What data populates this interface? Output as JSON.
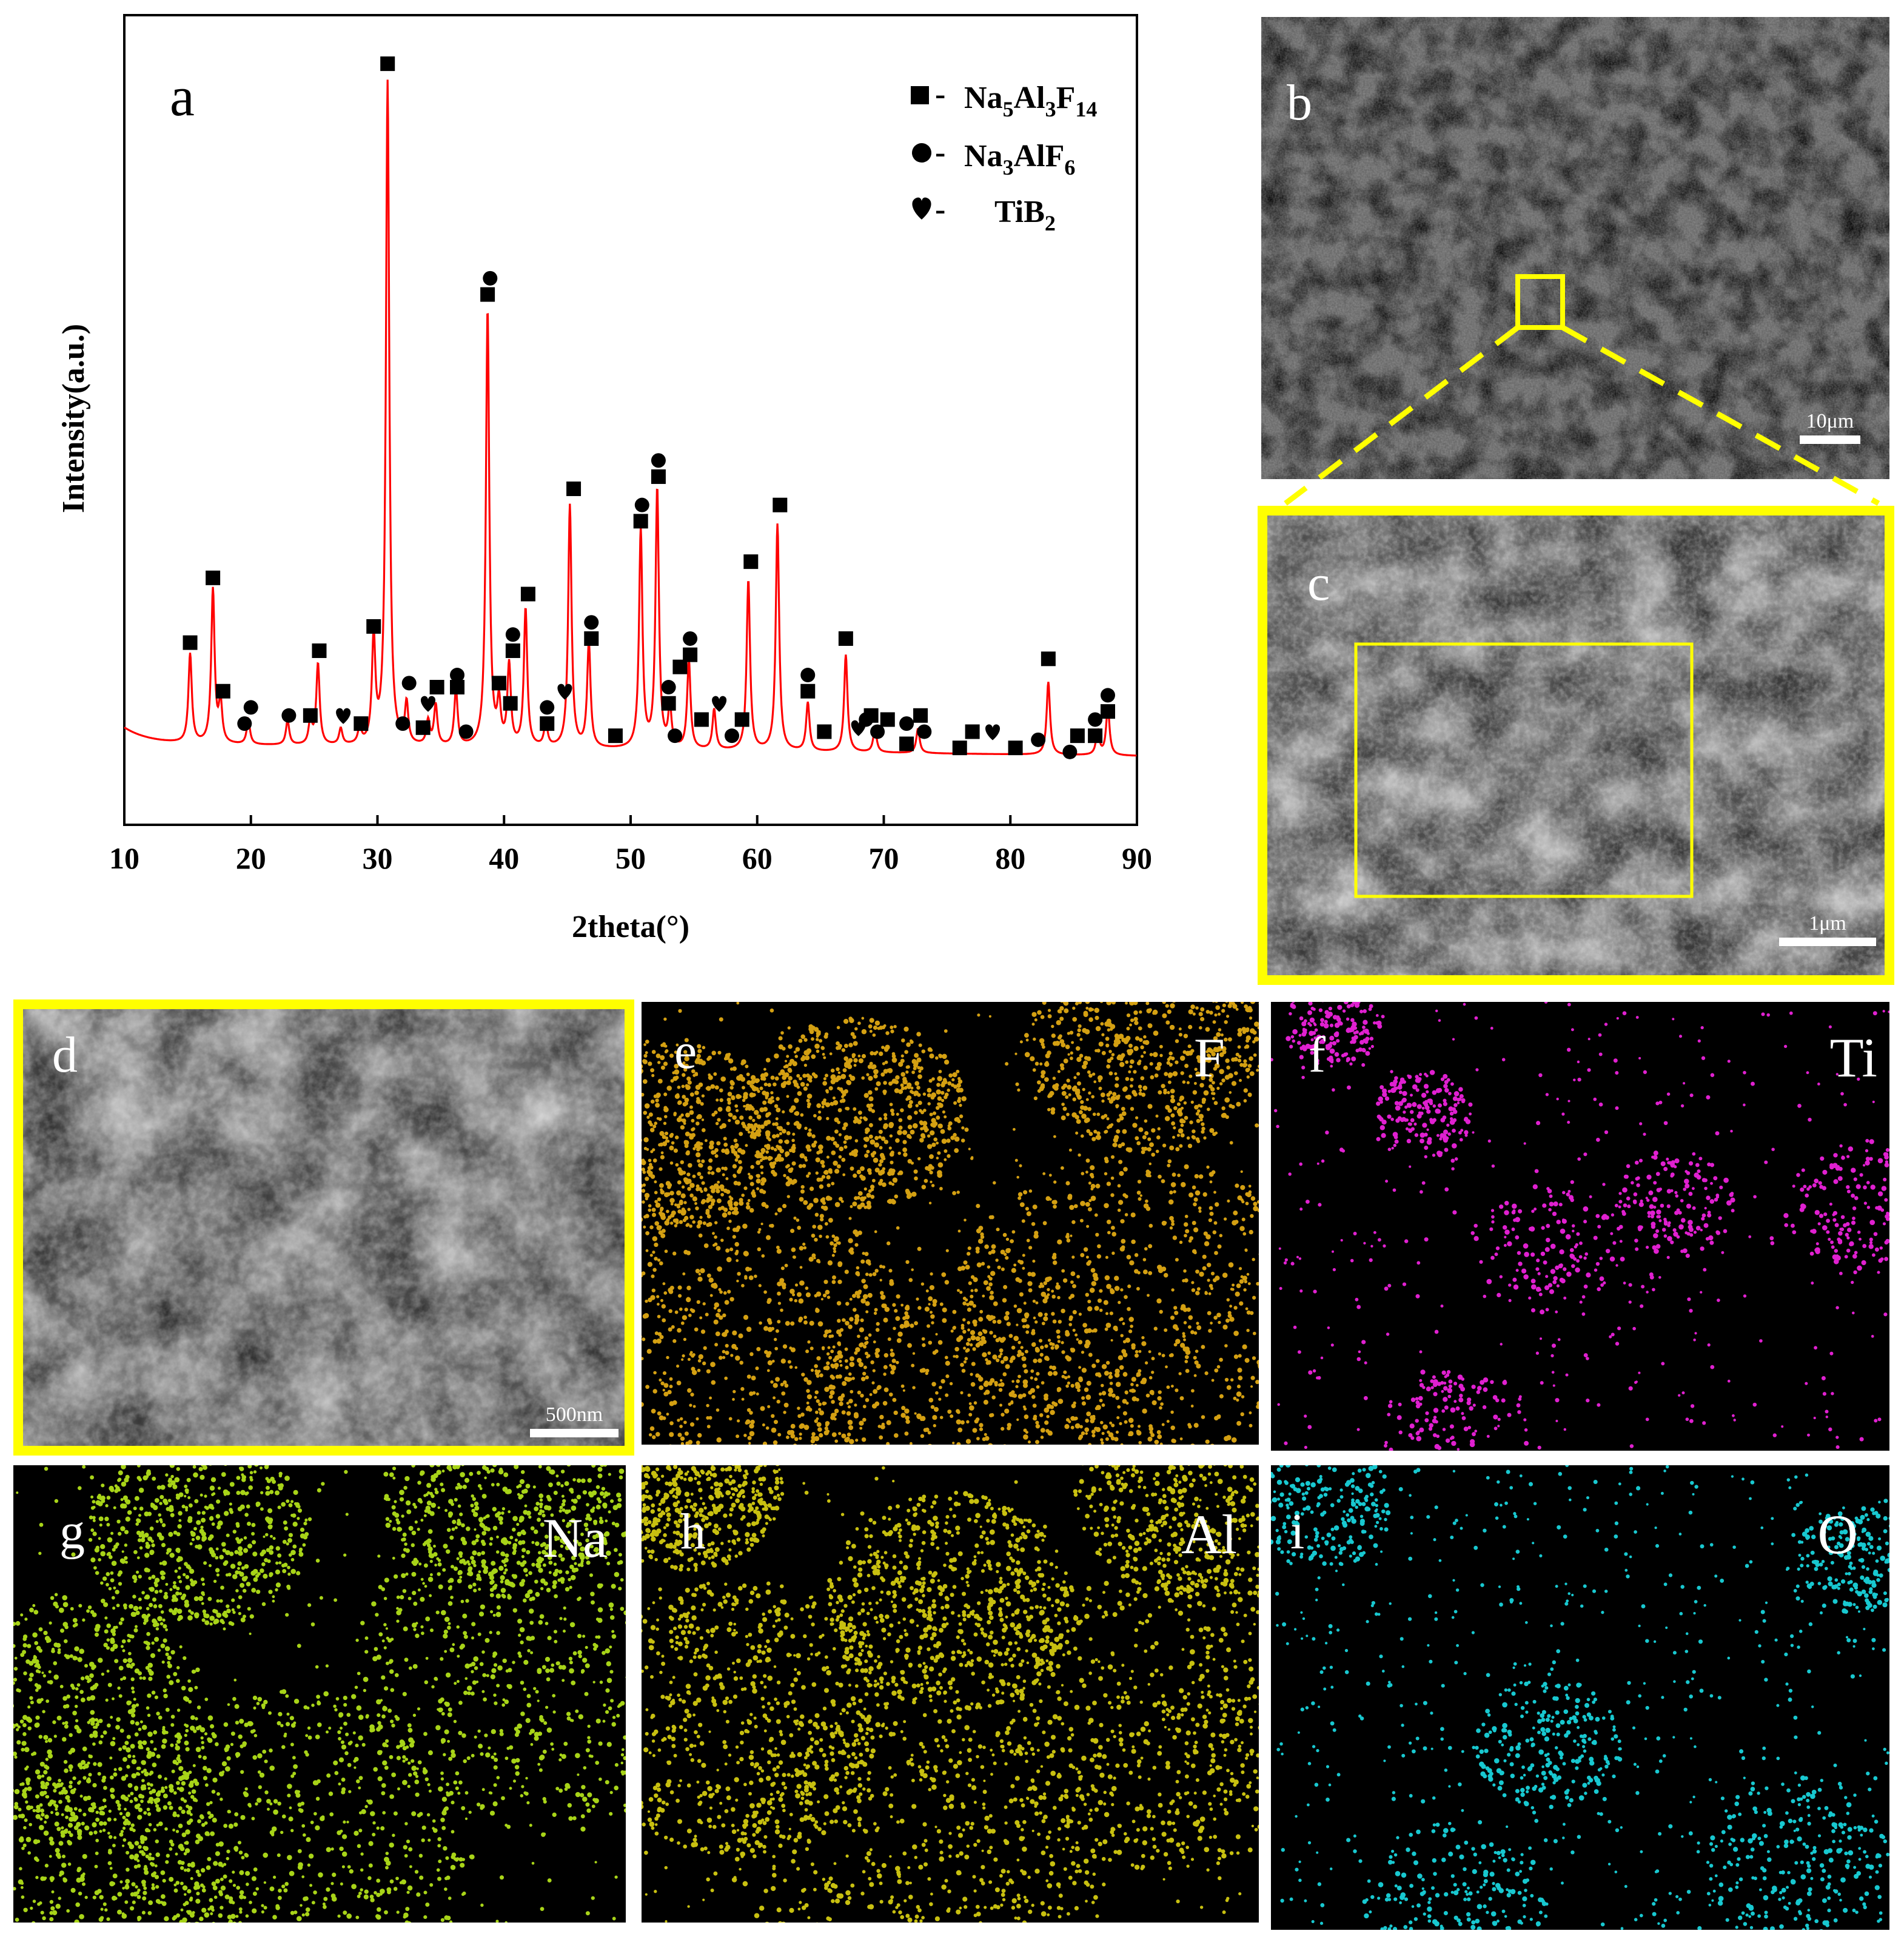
{
  "chart_data": {
    "type": "line",
    "title": "",
    "panel_label": "a",
    "xlabel": "2theta(°)",
    "ylabel": "Intensity(a.u.)",
    "xlim": [
      10,
      90
    ],
    "ylim": [
      0,
      100
    ],
    "xticks": [
      10,
      20,
      30,
      40,
      50,
      60,
      70,
      80,
      90
    ],
    "line_color": "#ff0000",
    "legend": [
      {
        "symbol": "square",
        "base": "Na",
        "label_html": "Na5Al3F14",
        "parts": [
          [
            "Na",
            ""
          ],
          [
            "5",
            "sub"
          ],
          [
            "Al",
            ""
          ],
          [
            "3",
            "sub"
          ],
          [
            "F",
            ""
          ],
          [
            "14",
            "sub"
          ]
        ],
        "prefix": "■-"
      },
      {
        "symbol": "circle",
        "label_html": "Na3AlF6",
        "parts": [
          [
            "Na",
            ""
          ],
          [
            "3",
            "sub"
          ],
          [
            "AlF",
            ""
          ],
          [
            "6",
            "sub"
          ]
        ],
        "prefix": "●-"
      },
      {
        "symbol": "heart",
        "label_html": "TiB2",
        "parts": [
          [
            "TiB",
            ""
          ],
          [
            "2",
            "sub"
          ]
        ],
        "prefix": "♥-"
      }
    ],
    "legend_position": "top-right",
    "background_level": 10,
    "peaks": [
      {
        "x": 15.2,
        "y": 21
      },
      {
        "x": 17.0,
        "y": 29
      },
      {
        "x": 17.6,
        "y": 15
      },
      {
        "x": 19.8,
        "y": 13
      },
      {
        "x": 22.9,
        "y": 13
      },
      {
        "x": 24.7,
        "y": 13
      },
      {
        "x": 25.3,
        "y": 20
      },
      {
        "x": 27.1,
        "y": 12
      },
      {
        "x": 28.6,
        "y": 12
      },
      {
        "x": 29.7,
        "y": 23
      },
      {
        "x": 30.8,
        "y": 92
      },
      {
        "x": 32.3,
        "y": 15
      },
      {
        "x": 34.0,
        "y": 13
      },
      {
        "x": 34.6,
        "y": 15
      },
      {
        "x": 36.2,
        "y": 17
      },
      {
        "x": 38.7,
        "y": 64
      },
      {
        "x": 39.6,
        "y": 15
      },
      {
        "x": 40.4,
        "y": 20
      },
      {
        "x": 41.7,
        "y": 27
      },
      {
        "x": 43.3,
        "y": 13
      },
      {
        "x": 45.2,
        "y": 40
      },
      {
        "x": 46.7,
        "y": 23
      },
      {
        "x": 50.8,
        "y": 37
      },
      {
        "x": 52.1,
        "y": 42
      },
      {
        "x": 53.1,
        "y": 15
      },
      {
        "x": 54.6,
        "y": 21
      },
      {
        "x": 56.6,
        "y": 15
      },
      {
        "x": 59.3,
        "y": 31
      },
      {
        "x": 61.6,
        "y": 38
      },
      {
        "x": 64.0,
        "y": 16
      },
      {
        "x": 67.0,
        "y": 22
      },
      {
        "x": 69.3,
        "y": 13
      },
      {
        "x": 72.7,
        "y": 13
      },
      {
        "x": 83.0,
        "y": 19
      },
      {
        "x": 86.9,
        "y": 13
      },
      {
        "x": 87.7,
        "y": 16
      }
    ],
    "phase_markers": [
      {
        "phase": "Na5Al3F14",
        "x": 15.2,
        "y": 22.5
      },
      {
        "phase": "Na5Al3F14",
        "x": 17.0,
        "y": 30.5
      },
      {
        "phase": "Na5Al3F14",
        "x": 17.8,
        "y": 16.5
      },
      {
        "phase": "Na3AlF6",
        "x": 19.5,
        "y": 12.5
      },
      {
        "phase": "Na3AlF6",
        "x": 20.0,
        "y": 14.5
      },
      {
        "phase": "Na3AlF6",
        "x": 23.0,
        "y": 13.5
      },
      {
        "phase": "Na5Al3F14",
        "x": 24.7,
        "y": 13.5
      },
      {
        "phase": "Na5Al3F14",
        "x": 25.4,
        "y": 21.5
      },
      {
        "phase": "TiB2",
        "x": 27.3,
        "y": 13.5
      },
      {
        "phase": "Na5Al3F14",
        "x": 28.7,
        "y": 12.5
      },
      {
        "phase": "Na5Al3F14",
        "x": 29.7,
        "y": 24.5
      },
      {
        "phase": "Na5Al3F14",
        "x": 30.8,
        "y": 94
      },
      {
        "phase": "Na3AlF6",
        "x": 32.0,
        "y": 12.5
      },
      {
        "phase": "Na3AlF6",
        "x": 32.5,
        "y": 17.5
      },
      {
        "phase": "Na5Al3F14",
        "x": 33.6,
        "y": 12
      },
      {
        "phase": "TiB2",
        "x": 34.0,
        "y": 15
      },
      {
        "phase": "Na5Al3F14",
        "x": 34.7,
        "y": 17
      },
      {
        "phase": "Na3AlF6",
        "x": 36.3,
        "y": 18.5
      },
      {
        "phase": "Na5Al3F14",
        "x": 36.3,
        "y": 17
      },
      {
        "phase": "Na3AlF6",
        "x": 37.0,
        "y": 11.5
      },
      {
        "phase": "Na3AlF6",
        "x": 38.9,
        "y": 67.5
      },
      {
        "phase": "Na5Al3F14",
        "x": 38.7,
        "y": 65.5
      },
      {
        "phase": "Na5Al3F14",
        "x": 39.6,
        "y": 17.5
      },
      {
        "phase": "Na3AlF6",
        "x": 40.7,
        "y": 23.5
      },
      {
        "phase": "Na5Al3F14",
        "x": 40.7,
        "y": 21.5
      },
      {
        "phase": "Na5Al3F14",
        "x": 40.5,
        "y": 15
      },
      {
        "phase": "Na5Al3F14",
        "x": 41.9,
        "y": 28.5
      },
      {
        "phase": "Na3AlF6",
        "x": 43.4,
        "y": 14.5
      },
      {
        "phase": "Na5Al3F14",
        "x": 43.4,
        "y": 12.5
      },
      {
        "phase": "TiB2",
        "x": 44.8,
        "y": 16.5
      },
      {
        "phase": "Na5Al3F14",
        "x": 45.5,
        "y": 41.5
      },
      {
        "phase": "Na3AlF6",
        "x": 46.9,
        "y": 25
      },
      {
        "phase": "Na5Al3F14",
        "x": 46.9,
        "y": 23
      },
      {
        "phase": "Na5Al3F14",
        "x": 48.8,
        "y": 11
      },
      {
        "phase": "Na3AlF6",
        "x": 50.9,
        "y": 39.5
      },
      {
        "phase": "Na5Al3F14",
        "x": 50.8,
        "y": 37.5
      },
      {
        "phase": "Na3AlF6",
        "x": 52.2,
        "y": 45
      },
      {
        "phase": "Na5Al3F14",
        "x": 52.2,
        "y": 43
      },
      {
        "phase": "Na3AlF6",
        "x": 53.0,
        "y": 17
      },
      {
        "phase": "Na5Al3F14",
        "x": 53.0,
        "y": 15
      },
      {
        "phase": "Na3AlF6",
        "x": 53.5,
        "y": 11
      },
      {
        "phase": "Na5Al3F14",
        "x": 53.9,
        "y": 19.5
      },
      {
        "phase": "Na3AlF6",
        "x": 54.7,
        "y": 23
      },
      {
        "phase": "Na5Al3F14",
        "x": 54.7,
        "y": 21
      },
      {
        "phase": "Na5Al3F14",
        "x": 55.6,
        "y": 13
      },
      {
        "phase": "TiB2",
        "x": 57.0,
        "y": 15
      },
      {
        "phase": "Na3AlF6",
        "x": 58.0,
        "y": 11
      },
      {
        "phase": "Na5Al3F14",
        "x": 58.8,
        "y": 13
      },
      {
        "phase": "Na5Al3F14",
        "x": 59.5,
        "y": 32.5
      },
      {
        "phase": "Na5Al3F14",
        "x": 61.8,
        "y": 39.5
      },
      {
        "phase": "Na3AlF6",
        "x": 64.0,
        "y": 18.5
      },
      {
        "phase": "Na5Al3F14",
        "x": 64.0,
        "y": 16.5
      },
      {
        "phase": "Na5Al3F14",
        "x": 65.3,
        "y": 11.5
      },
      {
        "phase": "Na5Al3F14",
        "x": 67.0,
        "y": 23
      },
      {
        "phase": "TiB2",
        "x": 68.0,
        "y": 12
      },
      {
        "phase": "Na3AlF6",
        "x": 68.6,
        "y": 13
      },
      {
        "phase": "Na5Al3F14",
        "x": 69.0,
        "y": 13.5
      },
      {
        "phase": "Na3AlF6",
        "x": 69.5,
        "y": 11.5
      },
      {
        "phase": "Na5Al3F14",
        "x": 70.3,
        "y": 13
      },
      {
        "phase": "Na5Al3F14",
        "x": 71.8,
        "y": 10
      },
      {
        "phase": "Na3AlF6",
        "x": 71.8,
        "y": 12.5
      },
      {
        "phase": "Na5Al3F14",
        "x": 72.9,
        "y": 13.5
      },
      {
        "phase": "Na3AlF6",
        "x": 73.2,
        "y": 11.5
      },
      {
        "phase": "Na5Al3F14",
        "x": 76.0,
        "y": 9.5
      },
      {
        "phase": "Na5Al3F14",
        "x": 77.0,
        "y": 11.5
      },
      {
        "phase": "TiB2",
        "x": 78.6,
        "y": 11.5
      },
      {
        "phase": "Na5Al3F14",
        "x": 80.4,
        "y": 9.5
      },
      {
        "phase": "Na3AlF6",
        "x": 82.2,
        "y": 10.5
      },
      {
        "phase": "Na5Al3F14",
        "x": 83.0,
        "y": 20.5
      },
      {
        "phase": "Na3AlF6",
        "x": 84.7,
        "y": 9
      },
      {
        "phase": "Na5Al3F14",
        "x": 85.3,
        "y": 11
      },
      {
        "phase": "Na5Al3F14",
        "x": 86.7,
        "y": 11
      },
      {
        "phase": "Na3AlF6",
        "x": 86.7,
        "y": 13
      },
      {
        "phase": "Na5Al3F14",
        "x": 87.7,
        "y": 14
      },
      {
        "phase": "Na3AlF6",
        "x": 87.7,
        "y": 16
      }
    ]
  },
  "panels": {
    "b": {
      "label": "b",
      "scale": "10μm"
    },
    "c": {
      "label": "c",
      "scale": "1μm"
    },
    "d": {
      "label": "d",
      "scale": "500nm"
    },
    "e": {
      "label": "e",
      "element": "F",
      "color": "#d4a012"
    },
    "f": {
      "label": "f",
      "element": "Ti",
      "color": "#e020d0"
    },
    "g": {
      "label": "g",
      "element": "Na",
      "color": "#a8d418"
    },
    "h": {
      "label": "h",
      "element": "Al",
      "color": "#c8c010"
    },
    "i": {
      "label": "i",
      "element": "O",
      "color": "#18c8d0"
    }
  },
  "colors": {
    "highlight": "#ffff00",
    "sem_gray": "#8a8a8a"
  }
}
